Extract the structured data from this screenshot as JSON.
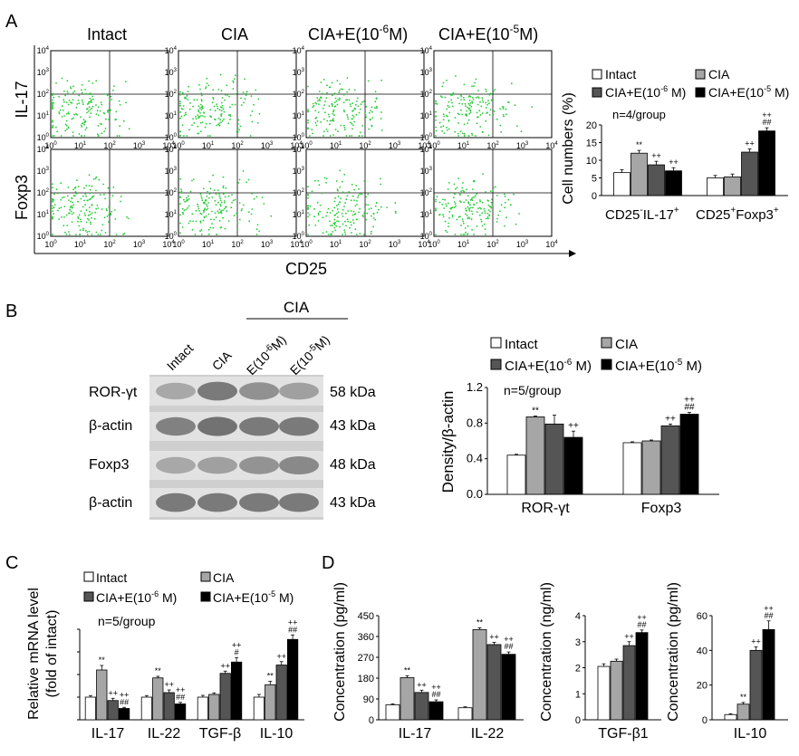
{
  "panels": {
    "A": {
      "label": "A",
      "columns": [
        "Intact",
        "CIA",
        "CIA+E(10",
        "CIA+E(10"
      ],
      "column_sup": [
        "",
        "",
        "-6",
        "-5"
      ],
      "column_tail": [
        "",
        "",
        "M)",
        "M)"
      ],
      "rows": [
        "IL-17",
        "Foxp3"
      ],
      "tick_base": "10",
      "tick_exps": [
        "0",
        "1",
        "2",
        "3",
        "4"
      ],
      "x_axis_label": "CD25",
      "scatter_color": "#22cc33",
      "chart": {
        "legend": [
          "Intact",
          "CIA",
          "CIA+E(10",
          "CIA+E(10"
        ],
        "legend_sup": [
          "",
          "",
          "-6",
          "-5"
        ],
        "legend_tail": [
          "",
          "",
          " M)",
          " M)"
        ],
        "n_note": "n=4/group",
        "ylabel": "Cell numbers (%)",
        "group_labels": [
          {
            "pre": "CD25",
            "sup1": "-",
            "mid": "IL-17",
            "sup2": "+"
          },
          {
            "pre": "CD25",
            "sup1": "+",
            "mid": "Foxp3",
            "sup2": "+"
          }
        ]
      }
    },
    "B": {
      "label": "B",
      "cia_bracket": "CIA",
      "lanes": [
        "Intact",
        "CIA",
        "E(10",
        "E(10"
      ],
      "lane_sup": [
        "",
        "",
        "-6",
        "-5"
      ],
      "lane_tail": [
        "",
        "",
        "M)",
        "M)"
      ],
      "bands": [
        {
          "name": "ROR-γt",
          "size": "58 kDa"
        },
        {
          "name": "β-actin",
          "size": "43 kDa"
        },
        {
          "name": "Foxp3",
          "size": "48 kDa"
        },
        {
          "name": "β-actin",
          "size": "43 kDa"
        }
      ],
      "chart": {
        "legend": [
          "Intact",
          "CIA",
          "CIA+E(10",
          "CIA+E(10"
        ],
        "legend_sup": [
          "",
          "",
          "-6",
          "-5"
        ],
        "legend_tail": [
          "",
          "",
          " M)",
          " M)"
        ],
        "n_note": "n=5/group",
        "ylabel": "Density/β-actin"
      }
    },
    "C": {
      "label": "C",
      "legend": [
        "Intact",
        "CIA",
        "CIA+E(10",
        "CIA+E(10"
      ],
      "legend_sup": [
        "",
        "",
        "-6",
        "-5"
      ],
      "legend_tail": [
        "",
        "",
        " M)",
        " M)"
      ],
      "n_note": "n=5/group",
      "ylabel1": "Relative mRNA level",
      "ylabel2": "(fold of intact)"
    },
    "D": {
      "label": "D",
      "ylabels": [
        "Concentration (pg/ml)",
        "Concentration (ng/ml)",
        "Concentration (pg/ml)"
      ]
    }
  },
  "bar_colors": [
    "#ffffff",
    "#a6a6a6",
    "#555555",
    "#000000"
  ],
  "chart_data": [
    {
      "id": "A-cells",
      "type": "bar",
      "categories": [
        "CD25-IL-17+",
        "CD25+Foxp3+"
      ],
      "ylim": [
        0,
        20
      ],
      "yticks": [
        0,
        5,
        10,
        15,
        20
      ],
      "series": [
        {
          "name": "Intact",
          "values": [
            6.5,
            5.0
          ],
          "err": [
            0.8,
            0.7
          ]
        },
        {
          "name": "CIA",
          "values": [
            12.0,
            5.3
          ],
          "err": [
            0.8,
            0.8
          ]
        },
        {
          "name": "CIA+E(10-6 M)",
          "values": [
            8.7,
            12.3
          ],
          "err": [
            1.0,
            0.9
          ]
        },
        {
          "name": "CIA+E(10-5 M)",
          "values": [
            7.0,
            18.3
          ],
          "err": [
            0.9,
            0.9
          ]
        }
      ],
      "annotations": [
        [
          "",
          "**",
          "++",
          "++"
        ],
        [
          "",
          "",
          "++",
          "++\n##"
        ]
      ]
    },
    {
      "id": "B-density",
      "type": "bar",
      "categories": [
        "ROR-γt",
        "Foxp3"
      ],
      "ylim": [
        0,
        1.2
      ],
      "yticks": [
        0.0,
        0.4,
        0.8,
        1.2
      ],
      "series": [
        {
          "name": "Intact",
          "values": [
            0.44,
            0.58
          ],
          "err": [
            0.01,
            0.01
          ]
        },
        {
          "name": "CIA",
          "values": [
            0.87,
            0.6
          ],
          "err": [
            0.01,
            0.01
          ]
        },
        {
          "name": "CIA+E(10-6 M)",
          "values": [
            0.79,
            0.77
          ],
          "err": [
            0.1,
            0.02
          ]
        },
        {
          "name": "CIA+E(10-5 M)",
          "values": [
            0.64,
            0.9
          ],
          "err": [
            0.07,
            0.02
          ]
        }
      ],
      "annotations": [
        [
          "",
          "**",
          "",
          "++"
        ],
        [
          "",
          "",
          "++",
          "++\n##"
        ]
      ]
    },
    {
      "id": "C-mrna",
      "type": "bar",
      "categories": [
        "IL-17",
        "IL-22",
        "TGF-β",
        "IL-10"
      ],
      "ylim": [
        0,
        4
      ],
      "yticks": [
        0,
        1,
        2,
        3,
        4
      ],
      "series": [
        {
          "name": "Intact",
          "values": [
            1.0,
            1.0,
            1.0,
            1.0
          ],
          "err": [
            0.07,
            0.07,
            0.08,
            0.12
          ]
        },
        {
          "name": "CIA",
          "values": [
            2.2,
            1.85,
            1.12,
            1.55
          ],
          "err": [
            0.2,
            0.07,
            0.07,
            0.15
          ]
        },
        {
          "name": "CIA+E(10-6 M)",
          "values": [
            0.85,
            1.2,
            2.05,
            2.42
          ],
          "err": [
            0.1,
            0.12,
            0.1,
            0.15
          ]
        },
        {
          "name": "CIA+E(10-5 M)",
          "values": [
            0.5,
            0.7,
            2.55,
            3.55
          ],
          "err": [
            0.05,
            0.07,
            0.2,
            0.2
          ]
        }
      ],
      "annotations": [
        [
          "",
          "**",
          "++",
          "++\n##"
        ],
        [
          "",
          "**",
          "++",
          "++\n##"
        ],
        [
          "",
          "",
          "++",
          "++\n#"
        ],
        [
          "",
          "**",
          "++",
          "++\n##"
        ]
      ]
    },
    {
      "id": "D-il17-il22",
      "type": "bar",
      "categories": [
        "IL-17",
        "IL-22"
      ],
      "ylim": [
        0,
        450
      ],
      "yticks": [
        0,
        90,
        180,
        270,
        360,
        450
      ],
      "series": [
        {
          "name": "Intact",
          "values": [
            65,
            52
          ],
          "err": [
            4,
            4
          ]
        },
        {
          "name": "CIA",
          "values": [
            182,
            390
          ],
          "err": [
            8,
            8
          ]
        },
        {
          "name": "CIA+E(10-6 M)",
          "values": [
            118,
            325
          ],
          "err": [
            10,
            10
          ]
        },
        {
          "name": "CIA+E(10-5 M)",
          "values": [
            78,
            283
          ],
          "err": [
            8,
            10
          ]
        }
      ],
      "annotations": [
        [
          "",
          "**",
          "++",
          "++\n##"
        ],
        [
          "",
          "**",
          "++",
          "++\n##"
        ]
      ]
    },
    {
      "id": "D-tgfb1",
      "type": "bar",
      "categories": [
        "TGF-β1"
      ],
      "ylim": [
        0,
        4
      ],
      "yticks": [
        0,
        1,
        2,
        3,
        4
      ],
      "series": [
        {
          "name": "Intact",
          "values": [
            2.05
          ],
          "err": [
            0.1
          ]
        },
        {
          "name": "CIA",
          "values": [
            2.25
          ],
          "err": [
            0.08
          ]
        },
        {
          "name": "CIA+E(10-6 M)",
          "values": [
            2.85
          ],
          "err": [
            0.15
          ]
        },
        {
          "name": "CIA+E(10-5 M)",
          "values": [
            3.35
          ],
          "err": [
            0.1
          ]
        }
      ],
      "annotations": [
        [
          "",
          "",
          "++",
          "++\n##"
        ]
      ]
    },
    {
      "id": "D-il10",
      "type": "bar",
      "categories": [
        "IL-10"
      ],
      "ylim": [
        0,
        60
      ],
      "yticks": [
        0,
        20,
        40,
        60
      ],
      "series": [
        {
          "name": "Intact",
          "values": [
            3
          ],
          "err": [
            0.5
          ]
        },
        {
          "name": "CIA",
          "values": [
            9
          ],
          "err": [
            1
          ]
        },
        {
          "name": "CIA+E(10-6 M)",
          "values": [
            40
          ],
          "err": [
            2
          ]
        },
        {
          "name": "CIA+E(10-5 M)",
          "values": [
            52
          ],
          "err": [
            5
          ]
        }
      ],
      "annotations": [
        [
          "",
          "**",
          "++",
          "++\n##"
        ]
      ]
    }
  ]
}
